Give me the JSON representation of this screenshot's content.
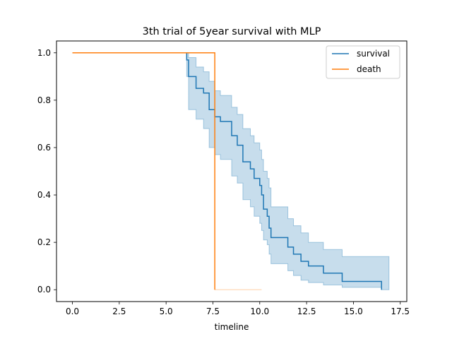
{
  "chart_data": {
    "type": "line",
    "title": "3th trial of 5year survival with MLP",
    "xlabel": "timeline",
    "ylabel": "",
    "xlim": [
      -0.85,
      17.85
    ],
    "ylim": [
      -0.05,
      1.05
    ],
    "xticks": [
      0.0,
      2.5,
      5.0,
      7.5,
      10.0,
      12.5,
      15.0,
      17.5
    ],
    "xtick_labels": [
      "0.0",
      "2.5",
      "5.0",
      "7.5",
      "10.0",
      "12.5",
      "15.0",
      "17.5"
    ],
    "yticks": [
      0.0,
      0.2,
      0.4,
      0.6,
      0.8,
      1.0
    ],
    "ytick_labels": [
      "0.0",
      "0.2",
      "0.4",
      "0.6",
      "0.8",
      "1.0"
    ],
    "grid": false,
    "legend_position": "upper right",
    "series": [
      {
        "name": "survival",
        "color": "#1f77b4",
        "step": true,
        "x": [
          0.0,
          6.0,
          6.1,
          6.2,
          6.6,
          7.0,
          7.3,
          7.6,
          7.9,
          8.5,
          8.8,
          9.1,
          9.5,
          9.7,
          10.0,
          10.1,
          10.2,
          10.4,
          10.5,
          10.6,
          11.5,
          11.8,
          12.2,
          12.6,
          13.4,
          14.4,
          16.5
        ],
        "y": [
          1.0,
          1.0,
          0.97,
          0.9,
          0.85,
          0.83,
          0.76,
          0.73,
          0.71,
          0.65,
          0.61,
          0.54,
          0.51,
          0.47,
          0.44,
          0.4,
          0.34,
          0.31,
          0.26,
          0.22,
          0.18,
          0.15,
          0.12,
          0.1,
          0.07,
          0.035,
          0.0
        ]
      },
      {
        "name": "death",
        "color": "#ff7f0e",
        "step": true,
        "x": [
          0.0,
          7.55,
          7.6,
          7.6
        ],
        "y": [
          1.0,
          1.0,
          0.57,
          0.0
        ]
      }
    ],
    "confidence_band": {
      "series": "survival",
      "color": "#1f77b4",
      "opacity": 0.25,
      "x": [
        6.0,
        6.1,
        6.2,
        6.6,
        7.0,
        7.3,
        7.6,
        7.9,
        8.5,
        8.8,
        9.1,
        9.5,
        9.7,
        10.0,
        10.1,
        10.2,
        10.4,
        10.5,
        10.6,
        11.5,
        11.8,
        12.2,
        12.6,
        13.4,
        14.4,
        16.5,
        16.9
      ],
      "lower": [
        1.0,
        0.9,
        0.76,
        0.72,
        0.68,
        0.6,
        0.57,
        0.55,
        0.48,
        0.45,
        0.38,
        0.35,
        0.31,
        0.28,
        0.25,
        0.21,
        0.19,
        0.15,
        0.11,
        0.08,
        0.06,
        0.04,
        0.03,
        0.02,
        0.01,
        0.0,
        0.0
      ],
      "upper": [
        1.0,
        1.0,
        0.98,
        0.94,
        0.92,
        0.88,
        0.84,
        0.82,
        0.77,
        0.74,
        0.68,
        0.65,
        0.62,
        0.59,
        0.55,
        0.5,
        0.47,
        0.43,
        0.35,
        0.3,
        0.27,
        0.24,
        0.2,
        0.17,
        0.14,
        0.14,
        0.0
      ]
    },
    "death_band": {
      "color": "#ff7f0e",
      "opacity": 0.25,
      "x": [
        7.6,
        10.1
      ],
      "y": 0.0
    }
  }
}
